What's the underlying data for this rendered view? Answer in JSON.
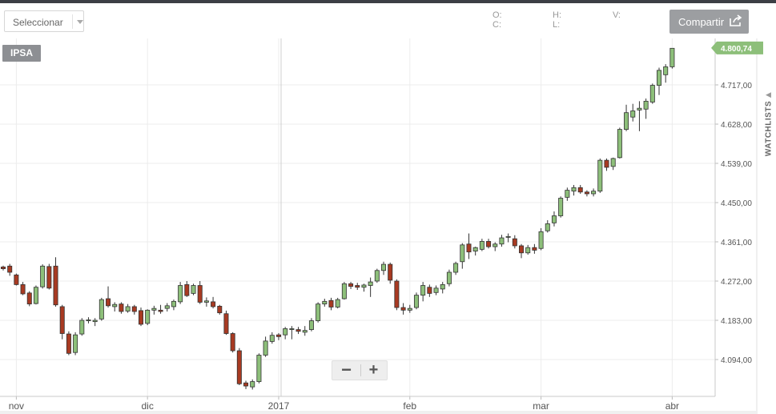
{
  "toolbar": {
    "select_label": "Seleccionar",
    "o_label": "O:",
    "c_label": "C:",
    "h_label": "H:",
    "l_label": "L:",
    "v_label": "V:",
    "share_label": "Compartir"
  },
  "chart_label": "IPSA",
  "zoom": {
    "minus": "−",
    "plus": "+"
  },
  "side_tab": "WATCHLISTS",
  "colors": {
    "up": "#8dbf7a",
    "down": "#a83a22",
    "last_price_tag": "#8dbf7a",
    "grid": "#ececec"
  },
  "chart_data": {
    "type": "candlestick",
    "last_price": "4.800,74",
    "y_ticks": [
      "4.717,00",
      "4.628,00",
      "4.539,00",
      "4.450,00",
      "4.361,00",
      "4.272,00",
      "4.183,00",
      "4.094,00"
    ],
    "y_tick_values": [
      4717,
      4628,
      4539,
      4450,
      4361,
      4272,
      4183,
      4094
    ],
    "ylim": [
      4065,
      4822
    ],
    "x_ticks": [
      "nov",
      "dic",
      "2017",
      "feb",
      "mar",
      "abr"
    ],
    "x_tick_index": [
      2,
      22,
      42,
      62,
      82,
      102
    ],
    "candles": [
      [
        4304,
        4307,
        4296,
        4300
      ],
      [
        4306,
        4311,
        4284,
        4292
      ],
      [
        4286,
        4289,
        4262,
        4264
      ],
      [
        4264,
        4270,
        4240,
        4243
      ],
      [
        4245,
        4249,
        4215,
        4220
      ],
      [
        4221,
        4262,
        4219,
        4258
      ],
      [
        4259,
        4310,
        4255,
        4306
      ],
      [
        4305,
        4311,
        4253,
        4256
      ],
      [
        4306,
        4326,
        4214,
        4218
      ],
      [
        4214,
        4218,
        4140,
        4153
      ],
      [
        4152,
        4158,
        4104,
        4108
      ],
      [
        4110,
        4156,
        4104,
        4150
      ],
      [
        4152,
        4188,
        4148,
        4183
      ],
      [
        4182,
        4190,
        4176,
        4184
      ],
      [
        4180,
        4188,
        4170,
        4183
      ],
      [
        4186,
        4234,
        4182,
        4230
      ],
      [
        4232,
        4260,
        4212,
        4216
      ],
      [
        4214,
        4224,
        4203,
        4219
      ],
      [
        4220,
        4224,
        4198,
        4203
      ],
      [
        4204,
        4220,
        4200,
        4214
      ],
      [
        4214,
        4218,
        4196,
        4203
      ],
      [
        4205,
        4212,
        4170,
        4174
      ],
      [
        4176,
        4208,
        4172,
        4206
      ],
      [
        4206,
        4216,
        4196,
        4210
      ],
      [
        4206,
        4218,
        4198,
        4203
      ],
      [
        4210,
        4222,
        4203,
        4216
      ],
      [
        4214,
        4230,
        4206,
        4226
      ],
      [
        4225,
        4270,
        4220,
        4262
      ],
      [
        4264,
        4272,
        4236,
        4239
      ],
      [
        4244,
        4266,
        4240,
        4262
      ],
      [
        4262,
        4272,
        4220,
        4224
      ],
      [
        4224,
        4235,
        4214,
        4227
      ],
      [
        4225,
        4236,
        4210,
        4214
      ],
      [
        4215,
        4218,
        4196,
        4200
      ],
      [
        4198,
        4205,
        4150,
        4153
      ],
      [
        4153,
        4156,
        4110,
        4114
      ],
      [
        4114,
        4120,
        4036,
        4039
      ],
      [
        4041,
        4046,
        4027,
        4034
      ],
      [
        4032,
        4049,
        4026,
        4044
      ],
      [
        4044,
        4108,
        4040,
        4104
      ],
      [
        4104,
        4146,
        4100,
        4136
      ],
      [
        4135,
        4156,
        4130,
        4149
      ],
      [
        4150,
        4154,
        4138,
        4146
      ],
      [
        4150,
        4168,
        4140,
        4164
      ],
      [
        4162,
        4170,
        4140,
        4164
      ],
      [
        4162,
        4168,
        4152,
        4158
      ],
      [
        4156,
        4170,
        4148,
        4160
      ],
      [
        4162,
        4188,
        4158,
        4182
      ],
      [
        4182,
        4224,
        4178,
        4220
      ],
      [
        4220,
        4232,
        4214,
        4226
      ],
      [
        4228,
        4234,
        4206,
        4213
      ],
      [
        4213,
        4234,
        4210,
        4230
      ],
      [
        4232,
        4270,
        4230,
        4266
      ],
      [
        4266,
        4270,
        4254,
        4260
      ],
      [
        4262,
        4268,
        4252,
        4258
      ],
      [
        4258,
        4266,
        4248,
        4263
      ],
      [
        4262,
        4280,
        4236,
        4270
      ],
      [
        4272,
        4300,
        4268,
        4296
      ],
      [
        4296,
        4316,
        4286,
        4310
      ],
      [
        4310,
        4314,
        4266,
        4274
      ],
      [
        4272,
        4276,
        4206,
        4212
      ],
      [
        4212,
        4222,
        4196,
        4206
      ],
      [
        4206,
        4218,
        4200,
        4210
      ],
      [
        4212,
        4246,
        4208,
        4240
      ],
      [
        4240,
        4270,
        4226,
        4262
      ],
      [
        4258,
        4264,
        4236,
        4244
      ],
      [
        4246,
        4262,
        4240,
        4256
      ],
      [
        4254,
        4270,
        4244,
        4264
      ],
      [
        4266,
        4298,
        4260,
        4292
      ],
      [
        4292,
        4316,
        4286,
        4312
      ],
      [
        4316,
        4358,
        4300,
        4354
      ],
      [
        4356,
        4380,
        4322,
        4338
      ],
      [
        4340,
        4350,
        4330,
        4348
      ],
      [
        4344,
        4368,
        4340,
        4362
      ],
      [
        4362,
        4368,
        4346,
        4350
      ],
      [
        4350,
        4360,
        4340,
        4356
      ],
      [
        4356,
        4377,
        4350,
        4370
      ],
      [
        4372,
        4380,
        4360,
        4373
      ],
      [
        4368,
        4376,
        4346,
        4352
      ],
      [
        4352,
        4356,
        4324,
        4336
      ],
      [
        4336,
        4354,
        4332,
        4348
      ],
      [
        4348,
        4356,
        4334,
        4342
      ],
      [
        4346,
        4392,
        4342,
        4384
      ],
      [
        4386,
        4410,
        4382,
        4402
      ],
      [
        4404,
        4430,
        4396,
        4420
      ],
      [
        4420,
        4464,
        4416,
        4460
      ],
      [
        4462,
        4484,
        4454,
        4478
      ],
      [
        4476,
        4490,
        4466,
        4484
      ],
      [
        4484,
        4490,
        4470,
        4474
      ],
      [
        4474,
        4478,
        4464,
        4470
      ],
      [
        4470,
        4482,
        4464,
        4476
      ],
      [
        4476,
        4550,
        4472,
        4546
      ],
      [
        4546,
        4550,
        4522,
        4530
      ],
      [
        4532,
        4552,
        4524,
        4550
      ],
      [
        4552,
        4620,
        4550,
        4616
      ],
      [
        4616,
        4672,
        4612,
        4654
      ],
      [
        4644,
        4674,
        4634,
        4658
      ],
      [
        4660,
        4680,
        4612,
        4664
      ],
      [
        4662,
        4686,
        4640,
        4680
      ],
      [
        4678,
        4720,
        4674,
        4716
      ],
      [
        4716,
        4756,
        4694,
        4750
      ],
      [
        4740,
        4764,
        4722,
        4758
      ],
      [
        4758,
        4800,
        4754,
        4800
      ]
    ]
  }
}
